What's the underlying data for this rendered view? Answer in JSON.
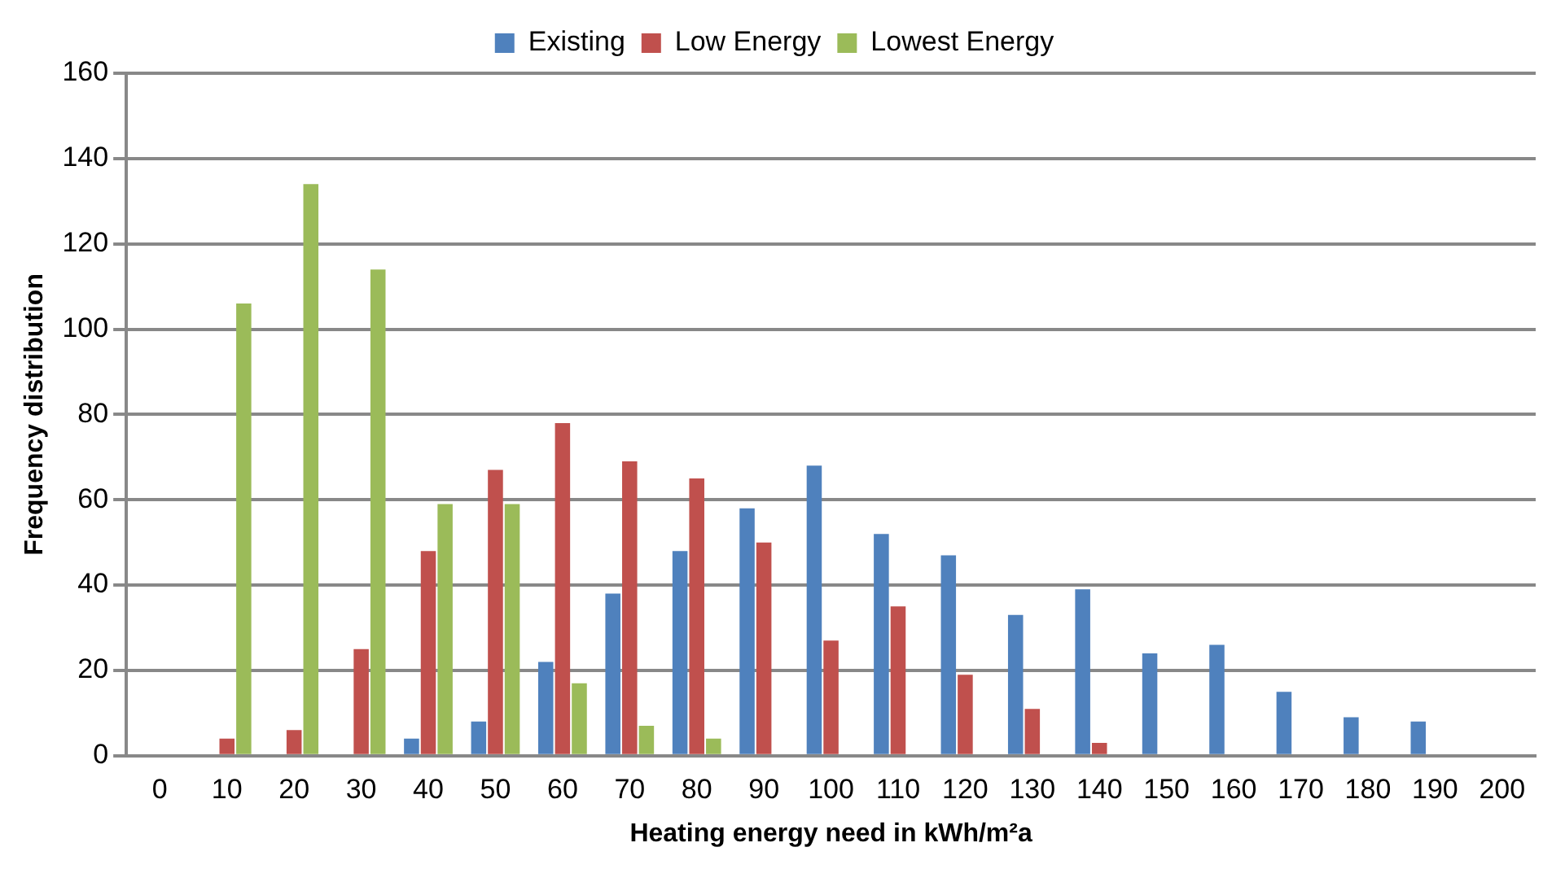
{
  "chart_data": {
    "type": "bar",
    "xlabel": "Heating energy need in kWh/m²a",
    "ylabel": "Frequency distribution",
    "categories": [
      "0",
      "10",
      "20",
      "30",
      "40",
      "50",
      "60",
      "70",
      "80",
      "90",
      "100",
      "110",
      "120",
      "130",
      "140",
      "150",
      "160",
      "170",
      "180",
      "190",
      "200"
    ],
    "series": [
      {
        "name": "Existing",
        "color": "#4f81bd",
        "values": [
          null,
          null,
          null,
          null,
          4,
          8,
          22,
          38,
          48,
          58,
          68,
          52,
          47,
          33,
          39,
          24,
          26,
          15,
          9,
          8,
          null
        ]
      },
      {
        "name": "Low Energy",
        "color": "#c0504d",
        "values": [
          null,
          4,
          6,
          25,
          48,
          67,
          78,
          69,
          65,
          50,
          27,
          35,
          19,
          11,
          3,
          null,
          null,
          null,
          null,
          null,
          null
        ]
      },
      {
        "name": "Lowest Energy",
        "color": "#9bbb59",
        "values": [
          null,
          106,
          134,
          114,
          59,
          59,
          17,
          7,
          4,
          null,
          null,
          null,
          null,
          null,
          null,
          null,
          null,
          null,
          null,
          null,
          null
        ]
      }
    ],
    "ylim": [
      0,
      160
    ],
    "yticks": [
      0,
      20,
      40,
      60,
      80,
      100,
      120,
      140,
      160
    ],
    "grid": "y",
    "legend": "top"
  }
}
